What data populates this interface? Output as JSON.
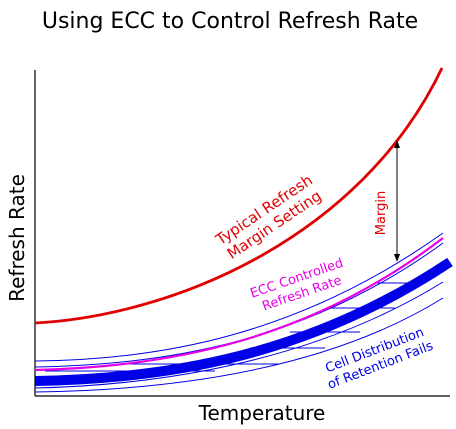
{
  "title": "Using ECC to Control Refresh Rate",
  "axes": {
    "x_label": "Temperature",
    "y_label": "Refresh Rate"
  },
  "curves": {
    "typical": {
      "label_line1": "Typical Refresh",
      "label_line2": "Margin Setting",
      "color": "#e00000"
    },
    "ecc": {
      "label_line1": "ECC Controlled",
      "label_line2": "Refresh Rate",
      "color": "#e600e6"
    },
    "distribution": {
      "label_line1": "Cell Distribution",
      "label_line2": "of Retention Fails",
      "color": "#0000e6"
    }
  },
  "margin": {
    "label": "Margin",
    "color": "#e00000"
  }
}
